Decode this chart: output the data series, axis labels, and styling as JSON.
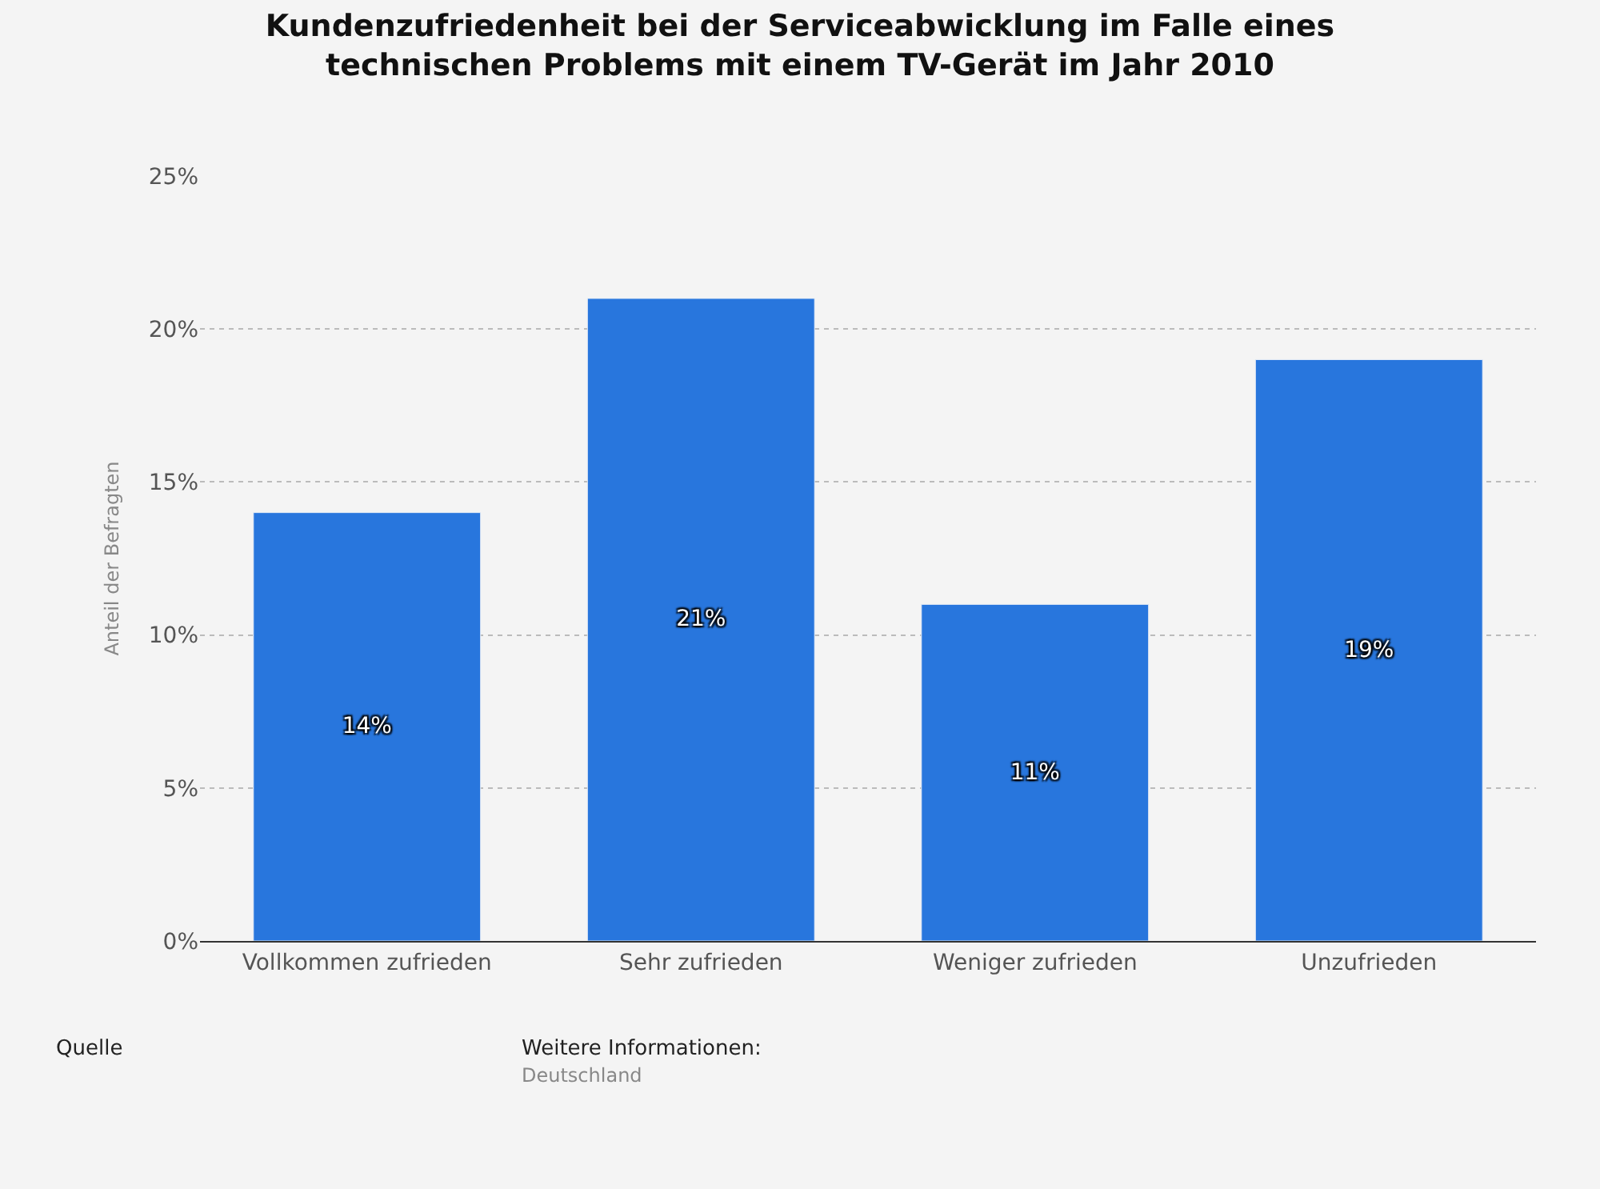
{
  "chart_data": {
    "type": "bar",
    "title": "Kundenzufriedenheit bei der Serviceabwicklung im Falle eines\ntechnischen Problems mit einem TV-Gerät im Jahr 2010",
    "ylabel": "Anteil der Befragten",
    "categories": [
      "Vollkommen zufrieden",
      "Sehr zufrieden",
      "Weniger zufrieden",
      "Unzufrieden"
    ],
    "values": [
      14,
      21,
      11,
      19
    ],
    "value_labels": [
      "14%",
      "21%",
      "11%",
      "19%"
    ],
    "color": "#2876dd",
    "ylim": [
      0,
      25
    ],
    "yticks": [
      {
        "value": 0,
        "label": "0%"
      },
      {
        "value": 5,
        "label": "5%"
      },
      {
        "value": 10,
        "label": "10%"
      },
      {
        "value": 15,
        "label": "15%"
      },
      {
        "value": 20,
        "label": "20%"
      },
      {
        "value": 25,
        "label": "25%"
      }
    ],
    "grid": "y",
    "annotations": [
      "Quelle",
      "Weitere Informationen:",
      "Deutschland"
    ]
  }
}
